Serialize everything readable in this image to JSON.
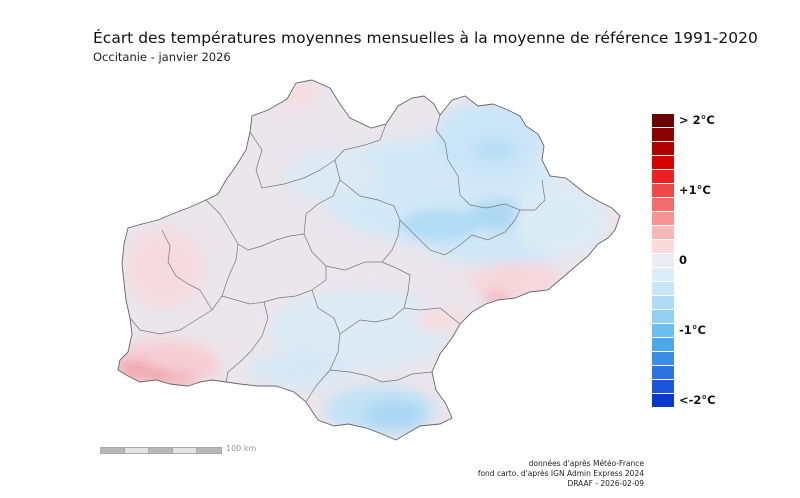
{
  "header": {
    "title": "Écart des températures moyennes mensuelles à la moyenne de référence 1991-2020",
    "subtitle": "Occitanie - janvier 2026"
  },
  "legend": {
    "colors": [
      "#6b0000",
      "#8e0000",
      "#b20000",
      "#d80000",
      "#ef2020",
      "#f24848",
      "#f46b6b",
      "#f79393",
      "#f9b8b8",
      "#fbdada",
      "#ecebf1",
      "#dcecf8",
      "#c7e6f8",
      "#aedcf6",
      "#8fd0f3",
      "#6cc0f0",
      "#4ba8ec",
      "#3a8ee8",
      "#2c73e2",
      "#1c55db",
      "#0a36cc"
    ],
    "labels": [
      {
        "text": "> 2°C",
        "index": 0
      },
      {
        "text": "+1°C",
        "index": 5
      },
      {
        "text": "0",
        "index": 10
      },
      {
        "text": "-1°C",
        "index": 15
      },
      {
        "text": "<-2°C",
        "index": 20
      }
    ]
  },
  "scale": {
    "label": "100 km"
  },
  "credits": {
    "line1": "données d'après Météo-France",
    "line2": "fond carto. d'après IGN Admin Express 2024",
    "line3": "DRAAF - 2026-02-09"
  }
}
